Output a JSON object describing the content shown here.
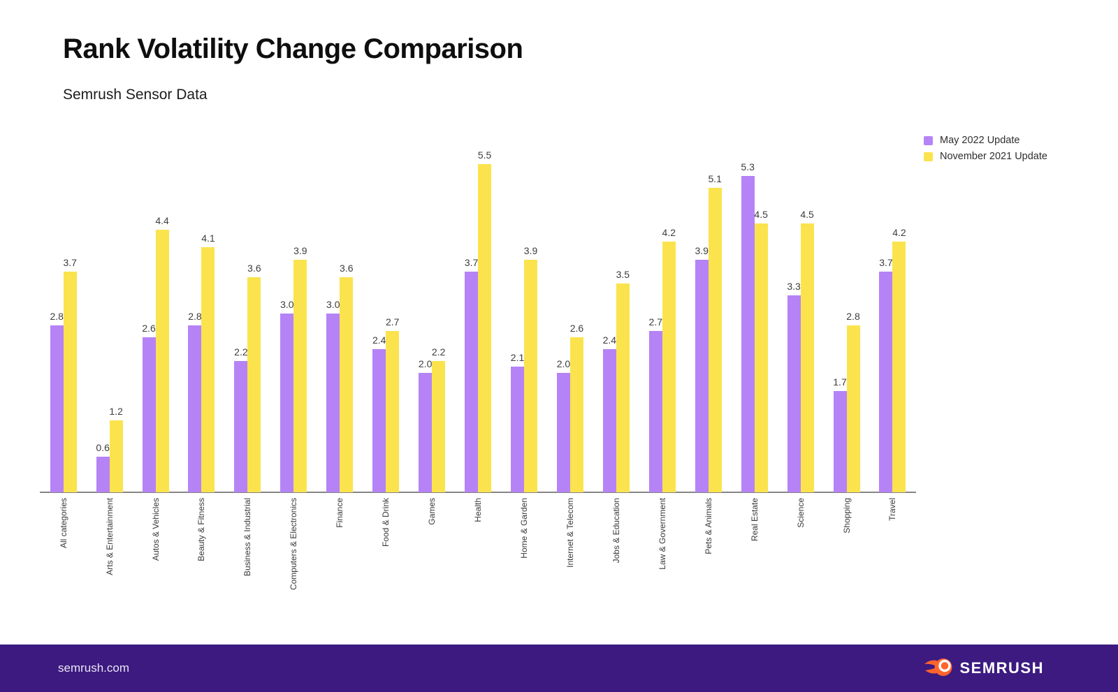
{
  "header": {
    "title": "Rank Volatility Change Comparison",
    "subtitle": "Semrush Sensor Data"
  },
  "chart_data": {
    "type": "bar",
    "title": "Rank Volatility Change Comparison",
    "subtitle": "Semrush Sensor Data",
    "xlabel": "",
    "ylabel": "",
    "ylim": [
      0,
      5.5
    ],
    "grid": false,
    "value_labels": true,
    "legend_position": "top-right",
    "categories": [
      "All categories",
      "Arts & Entertainment",
      "Autos & Vehicles",
      "Beauty & Fitness",
      "Business & Industrial",
      "Computers & Electronics",
      "Finance",
      "Food & Drink",
      "Games",
      "Health",
      "Home & Garden",
      "Internet & Telecom",
      "Jobs & Education",
      "Law & Government",
      "Pets & Animals",
      "Real Estate",
      "Science",
      "Shopping",
      "Travel"
    ],
    "series": [
      {
        "name": "May 2022 Update",
        "color": "#B583F6",
        "values": [
          2.8,
          0.6,
          2.6,
          2.8,
          2.2,
          3.0,
          3.0,
          2.4,
          2.0,
          3.7,
          2.1,
          2.0,
          2.4,
          2.7,
          3.9,
          5.3,
          3.3,
          1.7,
          3.7
        ]
      },
      {
        "name": "November 2021 Update",
        "color": "#FBE34D",
        "values": [
          3.7,
          1.2,
          4.4,
          4.1,
          3.6,
          3.9,
          3.6,
          2.7,
          2.2,
          5.5,
          3.9,
          2.6,
          3.5,
          4.2,
          5.1,
          4.5,
          4.5,
          2.8,
          4.2
        ]
      }
    ]
  },
  "footer": {
    "site": "semrush.com",
    "brand": "SEMRUSH",
    "background": "#3C1A80",
    "accent_orange": "#FF642D"
  }
}
